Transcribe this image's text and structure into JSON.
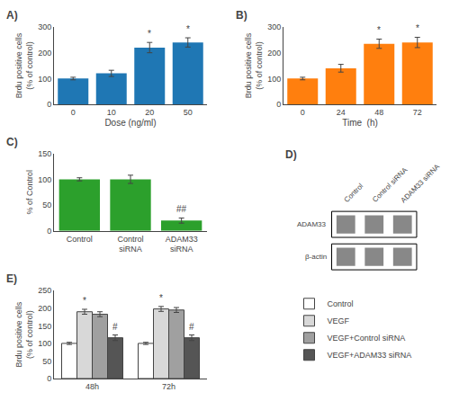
{
  "chart_data": [
    {
      "type": "bar",
      "title": "A)",
      "categories": [
        "0",
        "10",
        "20",
        "50"
      ],
      "values": [
        100,
        120,
        220,
        240
      ],
      "errors": [
        5,
        12,
        20,
        18
      ],
      "xlabel": "Dose (ng/ml)",
      "ylabel": "Brdu positive cells\n(% of control)",
      "ylim": [
        0,
        300
      ],
      "yticks": [
        0,
        100,
        200,
        300
      ],
      "grid": false,
      "annotations": [
        {
          "x": "20",
          "text": "*"
        },
        {
          "x": "50",
          "text": "*"
        }
      ]
    },
    {
      "type": "bar",
      "title": "B)",
      "categories": [
        "0",
        "24",
        "48",
        "72"
      ],
      "values": [
        100,
        140,
        235,
        240
      ],
      "errors": [
        5,
        15,
        18,
        20
      ],
      "xlabel": "Time  (h)",
      "ylabel": "Brdu positive cells\n(% of control)",
      "ylim": [
        0,
        300
      ],
      "yticks": [
        0,
        100,
        200,
        300
      ],
      "grid": false,
      "annotations": [
        {
          "x": "48",
          "text": "*"
        },
        {
          "x": "72",
          "text": "*"
        }
      ]
    },
    {
      "type": "bar",
      "title": "C)",
      "categories": [
        "Control",
        "Control\nsiRNA",
        "ADAM33\nsiRNA"
      ],
      "values": [
        100,
        100,
        20
      ],
      "errors": [
        3,
        8,
        5
      ],
      "ylabel": "% of Control",
      "ylim": [
        0,
        150
      ],
      "yticks": [
        0,
        50,
        100,
        150
      ],
      "grid": false,
      "annotations": [
        {
          "x": "ADAM33\nsiRNA",
          "text": "##"
        }
      ]
    },
    {
      "type": "blot",
      "title": "D)",
      "categories": [
        "Control",
        "Control siRNA",
        "ADAM33 siRNA"
      ],
      "annotations": [
        {
          "text": "ADAM33"
        },
        {
          "text": "β-actin"
        }
      ],
      "color": "#888888"
    },
    {
      "type": "bar",
      "title": "E)",
      "categories": [
        "48h",
        "72h"
      ],
      "series": [
        {
          "name": "Control",
          "color": "#ffffff",
          "values": [
            100,
            100
          ],
          "errors": [
            3,
            3
          ]
        },
        {
          "name": "VEGF",
          "color": "#d8d8d8",
          "values": [
            190,
            198
          ],
          "errors": [
            7,
            7
          ]
        },
        {
          "name": "VEGF+Control siRNA",
          "color": "#a0a0a0",
          "values": [
            183,
            195
          ],
          "errors": [
            7,
            7
          ]
        },
        {
          "name": "VEGF+ADAM33 siRNA",
          "color": "#555555",
          "values": [
            116,
            116
          ],
          "errors": [
            8,
            8
          ]
        }
      ],
      "ylabel": "Brdu positive cells\n(% of control)",
      "ylim": [
        0,
        250
      ],
      "yticks": [
        0,
        50,
        100,
        150,
        200,
        250
      ],
      "grid": false,
      "annotations": [
        {
          "x": "48h",
          "series": "VEGF",
          "text": "*"
        },
        {
          "x": "48h",
          "series": "VEGF+ADAM33 siRNA",
          "text": "#"
        },
        {
          "x": "72h",
          "series": "VEGF",
          "text": "*"
        },
        {
          "x": "72h",
          "series": "VEGF+ADAM33 siRNA",
          "text": "#"
        }
      ]
    }
  ]
}
